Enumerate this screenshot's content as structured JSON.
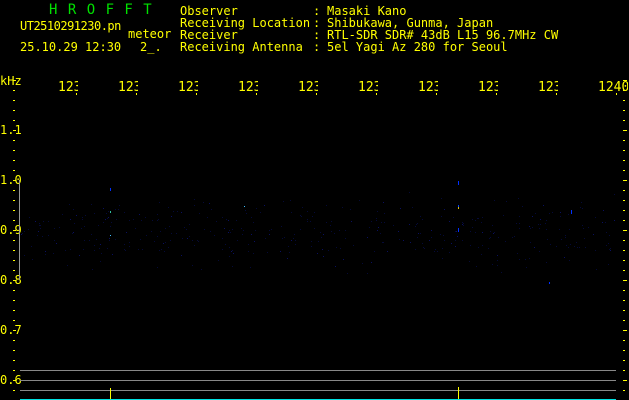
{
  "app": {
    "title": "H R O F F T"
  },
  "file": {
    "name": "UT2510291230.pn",
    "mode": "meteor",
    "datetime": "25.10.29 12:30",
    "count": "2_."
  },
  "info": [
    {
      "label": "Observer",
      "value": "Masaki Kano"
    },
    {
      "label": "Receiving Location",
      "value": "Shibukawa, Gunma, Japan"
    },
    {
      "label": "Receiver",
      "value": "RTL-SDR SDR# 43dB L15 96.7MHz CW"
    },
    {
      "label": "Receiving Antenna",
      "value": "5el Yagi Az 280 for Seoul"
    }
  ],
  "spectrogram": {
    "y_unit": "kHz",
    "y_ticks": [
      "1.1",
      "1.0",
      "0.9",
      "0.8",
      "0.7",
      "0.6"
    ],
    "x_ticks": [
      "1231",
      "1232",
      "1233",
      "1234",
      "1235",
      "1236",
      "1237",
      "1238",
      "1239",
      "1240"
    ],
    "colors": {
      "axis": "#ffff00",
      "title": "#00e000",
      "baseline": "#00e0e0",
      "grid": "#888888",
      "signal": "#0020ff"
    }
  }
}
